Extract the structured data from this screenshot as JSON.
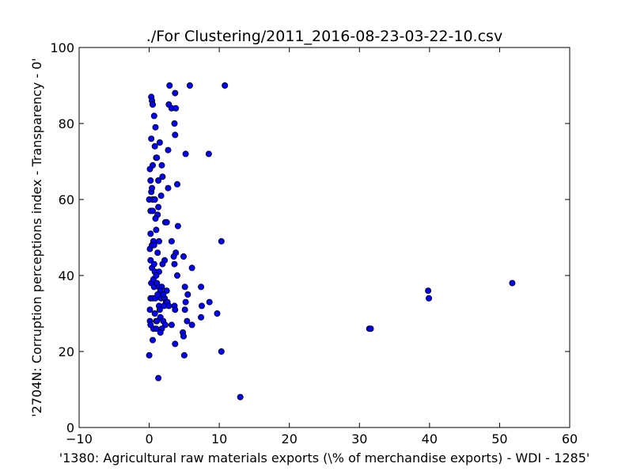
{
  "chart_data": {
    "type": "scatter",
    "title": "./For Clustering/2011_2016-08-23-03-22-10.csv",
    "xlabel": "'1380: Agricultural raw materials exports  (\\% of merchandise exports) - WDI - 1285'",
    "ylabel": "'2704N: Corruption perceptions index - Transparency - 0'",
    "xlim": [
      -10,
      60
    ],
    "ylim": [
      0,
      100
    ],
    "xticks": [
      -10,
      0,
      10,
      20,
      30,
      40,
      50,
      60
    ],
    "yticks": [
      0,
      20,
      40,
      60,
      80,
      100
    ],
    "xtick_labels": [
      "−10",
      "0",
      "10",
      "20",
      "30",
      "40",
      "50",
      "60"
    ],
    "ytick_labels": [
      "0",
      "20",
      "40",
      "60",
      "80",
      "100"
    ],
    "grid": false,
    "marker_color": "#0000ff",
    "marker_edge": "#000000",
    "points": [
      [
        0.3,
        87
      ],
      [
        0.4,
        86
      ],
      [
        0.5,
        85
      ],
      [
        2.9,
        90
      ],
      [
        5.8,
        90
      ],
      [
        10.8,
        90
      ],
      [
        2.8,
        85
      ],
      [
        3.2,
        84
      ],
      [
        3.8,
        84
      ],
      [
        3.7,
        88
      ],
      [
        0.7,
        82
      ],
      [
        3.6,
        80
      ],
      [
        0.9,
        79
      ],
      [
        3.7,
        77
      ],
      [
        0.3,
        76
      ],
      [
        1.5,
        75
      ],
      [
        0.8,
        74
      ],
      [
        2.7,
        73
      ],
      [
        5.2,
        72
      ],
      [
        8.5,
        72
      ],
      [
        1.0,
        71
      ],
      [
        1.1,
        71
      ],
      [
        0.5,
        69
      ],
      [
        1.8,
        69
      ],
      [
        0.1,
        68
      ],
      [
        1.9,
        66
      ],
      [
        0.2,
        65
      ],
      [
        1.3,
        65
      ],
      [
        4.0,
        64
      ],
      [
        2.7,
        63
      ],
      [
        0.3,
        62
      ],
      [
        0.4,
        63
      ],
      [
        1.7,
        61
      ],
      [
        0.0,
        60
      ],
      [
        0.5,
        60
      ],
      [
        0.8,
        60
      ],
      [
        1.3,
        58
      ],
      [
        0.2,
        57
      ],
      [
        0.5,
        57
      ],
      [
        1.2,
        56
      ],
      [
        0.9,
        55
      ],
      [
        2.3,
        54
      ],
      [
        2.5,
        54
      ],
      [
        4.1,
        53
      ],
      [
        1.0,
        52
      ],
      [
        0.2,
        51
      ],
      [
        1.4,
        49
      ],
      [
        0.6,
        49
      ],
      [
        3.2,
        49
      ],
      [
        10.3,
        49
      ],
      [
        0.1,
        47
      ],
      [
        0.4,
        48
      ],
      [
        0.7,
        48
      ],
      [
        1.2,
        46
      ],
      [
        3.8,
        46
      ],
      [
        3.5,
        45
      ],
      [
        4.9,
        45
      ],
      [
        0.2,
        44
      ],
      [
        2.2,
        44
      ],
      [
        1.9,
        43
      ],
      [
        0.4,
        42
      ],
      [
        0.7,
        43
      ],
      [
        0.8,
        41
      ],
      [
        1.4,
        41
      ],
      [
        3.6,
        43
      ],
      [
        6.1,
        42
      ],
      [
        0.3,
        38
      ],
      [
        0.6,
        39
      ],
      [
        1.0,
        40
      ],
      [
        4.0,
        40
      ],
      [
        0.7,
        37
      ],
      [
        1.1,
        38
      ],
      [
        1.4,
        37
      ],
      [
        1.8,
        37
      ],
      [
        2.5,
        36
      ],
      [
        5.1,
        37
      ],
      [
        7.4,
        37
      ],
      [
        0.2,
        34
      ],
      [
        0.5,
        34
      ],
      [
        0.9,
        34
      ],
      [
        1.3,
        35
      ],
      [
        1.7,
        34
      ],
      [
        2.2,
        34
      ],
      [
        2.4,
        33
      ],
      [
        2.6,
        33
      ],
      [
        5.5,
        35
      ],
      [
        1.4,
        32
      ],
      [
        2.1,
        32
      ],
      [
        3.6,
        32
      ],
      [
        5.2,
        33
      ],
      [
        7.5,
        32
      ],
      [
        8.6,
        33
      ],
      [
        0.1,
        31
      ],
      [
        0.8,
        30
      ],
      [
        1.5,
        31
      ],
      [
        2.8,
        32
      ],
      [
        3.7,
        31
      ],
      [
        5.1,
        31
      ],
      [
        9.7,
        30
      ],
      [
        1.0,
        28
      ],
      [
        1.6,
        29
      ],
      [
        2.0,
        28
      ],
      [
        1.1,
        28
      ],
      [
        0.1,
        28
      ],
      [
        0.2,
        27
      ],
      [
        2.3,
        27
      ],
      [
        3.2,
        27
      ],
      [
        5.4,
        28
      ],
      [
        6.1,
        27
      ],
      [
        7.4,
        29
      ],
      [
        0.6,
        26
      ],
      [
        1.0,
        26
      ],
      [
        1.8,
        26
      ],
      [
        1.6,
        25
      ],
      [
        4.8,
        25
      ],
      [
        4.9,
        24
      ],
      [
        31.4,
        26
      ],
      [
        31.6,
        26
      ],
      [
        0.5,
        23
      ],
      [
        3.7,
        22
      ],
      [
        10.3,
        20
      ],
      [
        0.0,
        19
      ],
      [
        5.0,
        19
      ],
      [
        1.3,
        13
      ],
      [
        13.0,
        8
      ],
      [
        39.8,
        36
      ],
      [
        39.9,
        34
      ],
      [
        51.8,
        38
      ],
      [
        1.6,
        36
      ],
      [
        2.0,
        35
      ],
      [
        1.2,
        35
      ]
    ]
  }
}
